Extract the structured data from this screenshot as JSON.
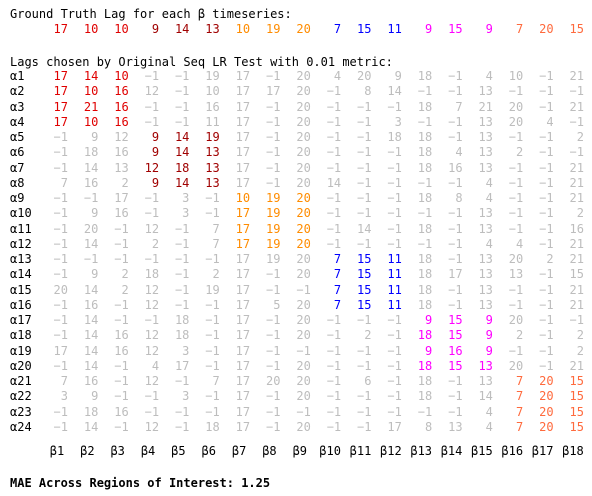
{
  "header": {
    "ground_truth_title": "Ground Truth Lag for each β timeseries:",
    "lags_title": "Lags chosen by Original Seq LR Test with 0.01 metric:"
  },
  "colors": {
    "red": "#e00000",
    "dark_red": "#a00000",
    "orange": "#ff8c00",
    "blue": "#0000ff",
    "magenta": "#ff00ff",
    "coral": "#ff6a3d",
    "gray": "#bdbdbd",
    "black": "#000000"
  },
  "ground_truth": [
    {
      "value": "17",
      "color": "red"
    },
    {
      "value": "10",
      "color": "red"
    },
    {
      "value": "10",
      "color": "red"
    },
    {
      "value": "9",
      "color": "dark_red"
    },
    {
      "value": "14",
      "color": "dark_red"
    },
    {
      "value": "13",
      "color": "dark_red"
    },
    {
      "value": "10",
      "color": "orange"
    },
    {
      "value": "19",
      "color": "orange"
    },
    {
      "value": "20",
      "color": "orange"
    },
    {
      "value": "7",
      "color": "blue"
    },
    {
      "value": "15",
      "color": "blue"
    },
    {
      "value": "11",
      "color": "blue"
    },
    {
      "value": "9",
      "color": "magenta"
    },
    {
      "value": "15",
      "color": "magenta"
    },
    {
      "value": "9",
      "color": "magenta"
    },
    {
      "value": "7",
      "color": "coral"
    },
    {
      "value": "20",
      "color": "coral"
    },
    {
      "value": "15",
      "color": "coral"
    }
  ],
  "row_labels": [
    "α1",
    "α2",
    "α3",
    "α4",
    "α5",
    "α6",
    "α7",
    "α8",
    "α9",
    "α10",
    "α11",
    "α12",
    "α13",
    "α14",
    "α15",
    "α16",
    "α17",
    "α18",
    "α19",
    "α20",
    "α21",
    "α22",
    "α23",
    "α24"
  ],
  "col_labels": [
    "β1",
    "β2",
    "β3",
    "β4",
    "β5",
    "β6",
    "β7",
    "β8",
    "β9",
    "β10",
    "β11",
    "β12",
    "β13",
    "β14",
    "β15",
    "β16",
    "β17",
    "β18"
  ],
  "matrix": [
    [
      "17",
      "14",
      "10",
      "−1",
      "−1",
      "19",
      "17",
      "−1",
      "20",
      "4",
      "20",
      "9",
      "18",
      "−1",
      "4",
      "10",
      "−1",
      "21"
    ],
    [
      "17",
      "10",
      "16",
      "12",
      "−1",
      "10",
      "17",
      "17",
      "20",
      "−1",
      "8",
      "14",
      "−1",
      "−1",
      "13",
      "−1",
      "−1",
      "−1"
    ],
    [
      "17",
      "21",
      "16",
      "−1",
      "−1",
      "16",
      "17",
      "−1",
      "20",
      "−1",
      "−1",
      "−1",
      "18",
      "7",
      "21",
      "20",
      "−1",
      "21"
    ],
    [
      "17",
      "10",
      "16",
      "−1",
      "−1",
      "11",
      "17",
      "−1",
      "20",
      "−1",
      "−1",
      "3",
      "−1",
      "−1",
      "13",
      "20",
      "4",
      "−1"
    ],
    [
      "−1",
      "9",
      "12",
      "9",
      "14",
      "19",
      "17",
      "−1",
      "20",
      "−1",
      "−1",
      "18",
      "18",
      "−1",
      "13",
      "−1",
      "−1",
      "2"
    ],
    [
      "−1",
      "18",
      "16",
      "9",
      "14",
      "13",
      "17",
      "−1",
      "20",
      "−1",
      "−1",
      "−1",
      "18",
      "4",
      "13",
      "2",
      "−1",
      "−1"
    ],
    [
      "−1",
      "14",
      "13",
      "12",
      "18",
      "13",
      "17",
      "−1",
      "20",
      "−1",
      "−1",
      "−1",
      "18",
      "16",
      "13",
      "−1",
      "−1",
      "21"
    ],
    [
      "7",
      "16",
      "2",
      "9",
      "14",
      "13",
      "17",
      "−1",
      "20",
      "14",
      "−1",
      "−1",
      "−1",
      "−1",
      "4",
      "−1",
      "−1",
      "21"
    ],
    [
      "−1",
      "−1",
      "17",
      "−1",
      "3",
      "−1",
      "10",
      "19",
      "20",
      "−1",
      "−1",
      "−1",
      "18",
      "8",
      "4",
      "−1",
      "−1",
      "21"
    ],
    [
      "−1",
      "9",
      "16",
      "−1",
      "3",
      "−1",
      "17",
      "19",
      "20",
      "−1",
      "−1",
      "−1",
      "−1",
      "−1",
      "13",
      "−1",
      "−1",
      "2"
    ],
    [
      "−1",
      "20",
      "−1",
      "12",
      "−1",
      "7",
      "17",
      "19",
      "20",
      "−1",
      "14",
      "−1",
      "18",
      "−1",
      "13",
      "−1",
      "−1",
      "16"
    ],
    [
      "−1",
      "14",
      "−1",
      "2",
      "−1",
      "7",
      "17",
      "19",
      "20",
      "−1",
      "−1",
      "−1",
      "−1",
      "−1",
      "4",
      "4",
      "−1",
      "21"
    ],
    [
      "−1",
      "−1",
      "−1",
      "−1",
      "−1",
      "−1",
      "17",
      "19",
      "20",
      "7",
      "15",
      "11",
      "18",
      "−1",
      "13",
      "20",
      "2",
      "21"
    ],
    [
      "−1",
      "9",
      "2",
      "18",
      "−1",
      "2",
      "17",
      "−1",
      "20",
      "7",
      "15",
      "11",
      "18",
      "17",
      "13",
      "13",
      "−1",
      "15"
    ],
    [
      "20",
      "14",
      "2",
      "12",
      "−1",
      "19",
      "17",
      "−1",
      "−1",
      "7",
      "15",
      "11",
      "18",
      "−1",
      "13",
      "−1",
      "−1",
      "21"
    ],
    [
      "−1",
      "16",
      "−1",
      "12",
      "−1",
      "−1",
      "17",
      "5",
      "20",
      "7",
      "15",
      "11",
      "18",
      "−1",
      "13",
      "−1",
      "−1",
      "21"
    ],
    [
      "−1",
      "14",
      "−1",
      "−1",
      "18",
      "−1",
      "17",
      "−1",
      "20",
      "−1",
      "−1",
      "−1",
      "9",
      "15",
      "9",
      "20",
      "−1",
      "−1"
    ],
    [
      "−1",
      "14",
      "16",
      "12",
      "18",
      "−1",
      "17",
      "−1",
      "20",
      "−1",
      "2",
      "−1",
      "18",
      "15",
      "9",
      "2",
      "−1",
      "2"
    ],
    [
      "17",
      "14",
      "16",
      "12",
      "3",
      "−1",
      "17",
      "−1",
      "−1",
      "−1",
      "−1",
      "−1",
      "9",
      "16",
      "9",
      "−1",
      "−1",
      "2"
    ],
    [
      "−1",
      "14",
      "−1",
      "4",
      "17",
      "−1",
      "17",
      "−1",
      "20",
      "−1",
      "−1",
      "−1",
      "18",
      "15",
      "13",
      "20",
      "−1",
      "21"
    ],
    [
      "7",
      "16",
      "−1",
      "12",
      "−1",
      "7",
      "17",
      "20",
      "20",
      "−1",
      "6",
      "−1",
      "18",
      "−1",
      "13",
      "7",
      "20",
      "15"
    ],
    [
      "3",
      "9",
      "−1",
      "−1",
      "3",
      "−1",
      "17",
      "−1",
      "20",
      "−1",
      "−1",
      "−1",
      "18",
      "−1",
      "14",
      "7",
      "20",
      "15"
    ],
    [
      "−1",
      "18",
      "16",
      "−1",
      "−1",
      "−1",
      "17",
      "−1",
      "−1",
      "−1",
      "−1",
      "−1",
      "−1",
      "−1",
      "4",
      "7",
      "20",
      "15"
    ],
    [
      "−1",
      "14",
      "−1",
      "12",
      "−1",
      "18",
      "17",
      "−1",
      "20",
      "−1",
      "−1",
      "17",
      "8",
      "13",
      "4",
      "7",
      "20",
      "15"
    ]
  ],
  "footer": {
    "mae_text": "MAE Across Regions of Interest: 1.25"
  }
}
